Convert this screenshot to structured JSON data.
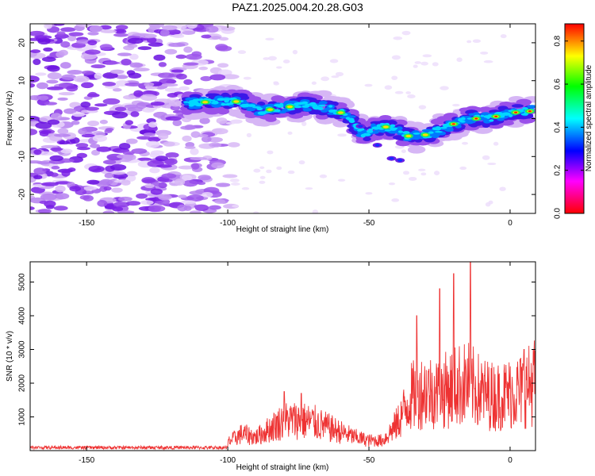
{
  "title": "PAZ1.2025.004.20.28.G03",
  "chart_data": [
    {
      "type": "heatmap",
      "xlabel": "Height of straight line (km)",
      "ylabel": "Frequency (Hz)",
      "xlim": [
        -170,
        9
      ],
      "ylim": [
        -25,
        25
      ],
      "x_ticks": [
        -150,
        -100,
        -50,
        0
      ],
      "y_ticks": [
        -20,
        -10,
        0,
        10,
        20
      ],
      "colorbar": {
        "label": "Normalized spectral amplitude",
        "range": [
          0.0,
          0.88
        ],
        "ticks": [
          0.0,
          0.2,
          0.4,
          0.6,
          0.8
        ],
        "colors": [
          "#ff0000",
          "#ff00ff",
          "#0000ff",
          "#00ffff",
          "#00ff00",
          "#ffff00",
          "#ff0000"
        ]
      },
      "signal_track": {
        "x": [
          -115,
          -105,
          -95,
          -88,
          -80,
          -72,
          -65,
          -58,
          -52,
          -45,
          -40,
          -35,
          -28,
          -22,
          -15,
          -8,
          0,
          8
        ],
        "frequency": [
          4,
          4.5,
          4.5,
          2,
          3,
          3.5,
          3,
          1,
          -4,
          -2,
          -3,
          -5,
          -4,
          -2,
          0,
          0,
          1.5,
          2
        ]
      },
      "noise_region_x": [
        -170,
        -100
      ]
    },
    {
      "type": "line",
      "xlabel": "Height of straight line (km)",
      "ylabel": "SNR (10 * v/v)",
      "xlim": [
        -170,
        9
      ],
      "ylim": [
        0,
        5600
      ],
      "x_ticks": [
        -150,
        -100,
        -50,
        0
      ],
      "y_ticks": [
        1000,
        2000,
        3000,
        4000,
        5000
      ],
      "line_color": "#ee3333",
      "envelope": {
        "x": [
          -170,
          -150,
          -120,
          -100,
          -95,
          -90,
          -85,
          -80,
          -75,
          -70,
          -65,
          -60,
          -55,
          -50,
          -45,
          -40,
          -35,
          -30,
          -25,
          -20,
          -15,
          -10,
          -5,
          0,
          5,
          9
        ],
        "y": [
          120,
          110,
          100,
          250,
          500,
          400,
          650,
          900,
          900,
          850,
          700,
          550,
          400,
          300,
          300,
          800,
          1600,
          1800,
          1700,
          1900,
          2000,
          1700,
          1600,
          1700,
          1800,
          2100
        ]
      },
      "peaks": [
        {
          "x": -80,
          "y": 1750
        },
        {
          "x": -74,
          "y": 1700
        },
        {
          "x": -33,
          "y": 4000
        },
        {
          "x": -25,
          "y": 4800
        },
        {
          "x": -20,
          "y": 5250
        },
        {
          "x": -14,
          "y": 5600
        },
        {
          "x": 5,
          "y": 3000
        },
        {
          "x": 9,
          "y": 2950
        }
      ]
    }
  ]
}
